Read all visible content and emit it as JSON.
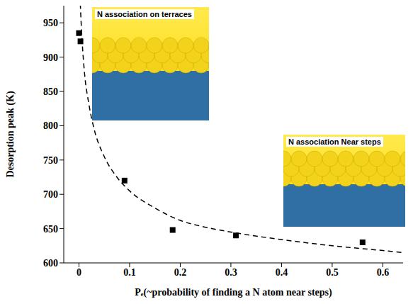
{
  "chart_data": {
    "type": "scatter",
    "x_label": "Pₑ(~probability of finding a N atom near steps)",
    "y_label": "Desorption peak (K)",
    "x": [
      0,
      0.003,
      0.09,
      0.185,
      0.31,
      0.56
    ],
    "values": [
      935,
      923,
      720,
      648,
      640,
      630
    ],
    "color": "#000000",
    "marker": "square",
    "fit": {
      "x": [
        0.002,
        0.005,
        0.01,
        0.02,
        0.03,
        0.05,
        0.075,
        0.1,
        0.15,
        0.2,
        0.25,
        0.3,
        0.4,
        0.5,
        0.6,
        0.64
      ],
      "values": [
        990,
        940,
        885,
        830,
        795,
        755,
        725,
        705,
        680,
        662,
        652,
        645,
        634,
        625,
        618,
        615
      ],
      "line_style": "dashed",
      "color": "#000000"
    },
    "xlim": [
      -0.03,
      0.64
    ],
    "xticks": [
      0,
      0.1,
      0.2,
      0.3,
      0.4,
      0.5,
      0.6
    ],
    "ylim": [
      600,
      975
    ],
    "yticks": [
      600,
      650,
      700,
      750,
      800,
      850,
      900,
      950
    ],
    "annotations": [
      "N association on terraces",
      "N association Near steps"
    ]
  }
}
